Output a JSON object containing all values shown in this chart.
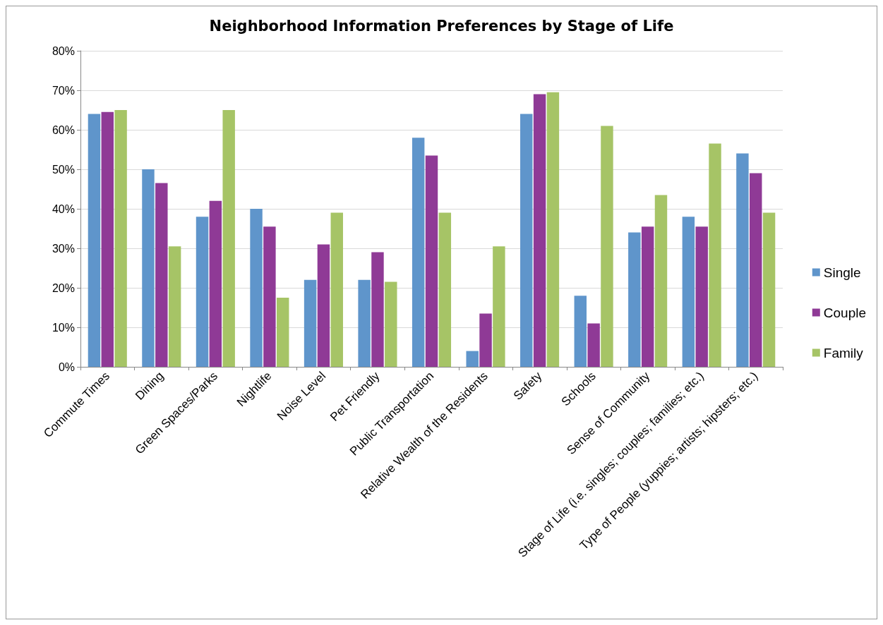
{
  "chart_data": {
    "type": "bar",
    "title": "Neighborhood Information Preferences by Stage of Life",
    "categories": [
      "Commute Times",
      "Dining",
      "Green Spaces/Parks",
      "Nightlife",
      "Noise Level",
      "Pet Friendly",
      "Public Transportation",
      "Relative Wealth of the Residents",
      "Safety",
      "Schools",
      "Sense of Community",
      "Stage of Life (i.e. singles; couples; families; etc.)",
      "Type of People (yuppies; artists; hipsters; etc.)"
    ],
    "series": [
      {
        "name": "Single",
        "color": "#5f95cb",
        "values": [
          64,
          50,
          38,
          40,
          22,
          22,
          58,
          4,
          64,
          18,
          34,
          38,
          54
        ]
      },
      {
        "name": "Couple",
        "color": "#8f3a96",
        "values": [
          64.5,
          46.5,
          42,
          35.5,
          31,
          29,
          53.5,
          13.5,
          69,
          11,
          35.5,
          35.5,
          49
        ]
      },
      {
        "name": "Family",
        "color": "#a6c466",
        "values": [
          65,
          30.5,
          65,
          17.5,
          39,
          21.5,
          39,
          30.5,
          69.5,
          61,
          43.5,
          56.5,
          39
        ]
      }
    ],
    "ylim": [
      0,
      80
    ],
    "yticks": [
      {
        "value": 0,
        "label": "0%"
      },
      {
        "value": 10,
        "label": "10%"
      },
      {
        "value": 20,
        "label": "20%"
      },
      {
        "value": 30,
        "label": "30%"
      },
      {
        "value": 40,
        "label": "40%"
      },
      {
        "value": 50,
        "label": "50%"
      },
      {
        "value": 60,
        "label": "60%"
      },
      {
        "value": 70,
        "label": "70%"
      },
      {
        "value": 80,
        "label": "80%"
      }
    ],
    "grid": "y",
    "legend": "right"
  }
}
